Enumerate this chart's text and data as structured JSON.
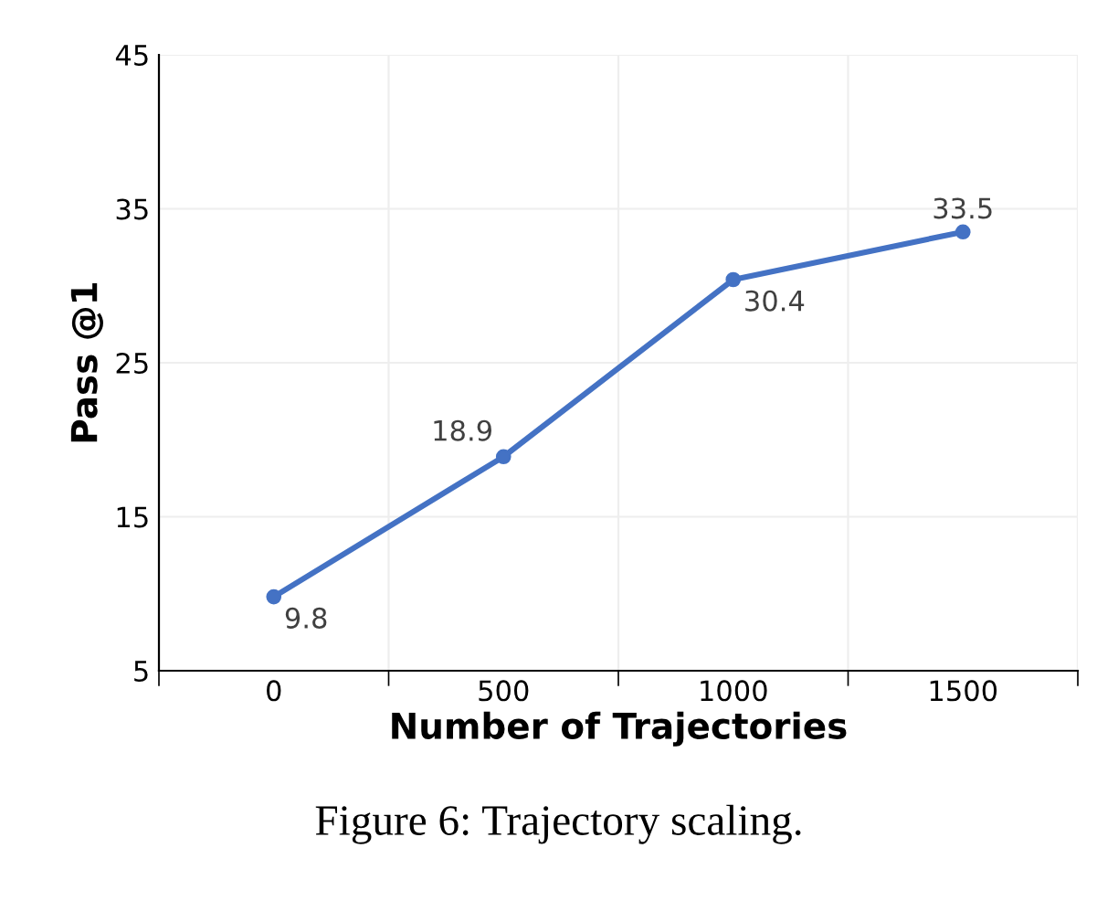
{
  "chart_data": {
    "type": "line",
    "xlabel": "Number of Trajectories",
    "ylabel": "Pass @1",
    "categories": [
      "0",
      "500",
      "1000",
      "1500"
    ],
    "series": [
      {
        "color": "#4472c4",
        "values": [
          9.8,
          18.9,
          30.4,
          33.5
        ]
      }
    ],
    "ylim": [
      5,
      45
    ],
    "yticks": [
      5,
      15,
      25,
      35,
      45
    ],
    "grid": true,
    "marker": "circle",
    "line_style": "solid",
    "data_labels": true,
    "annotations": [
      "Figure 6: Trajectory scaling."
    ]
  }
}
